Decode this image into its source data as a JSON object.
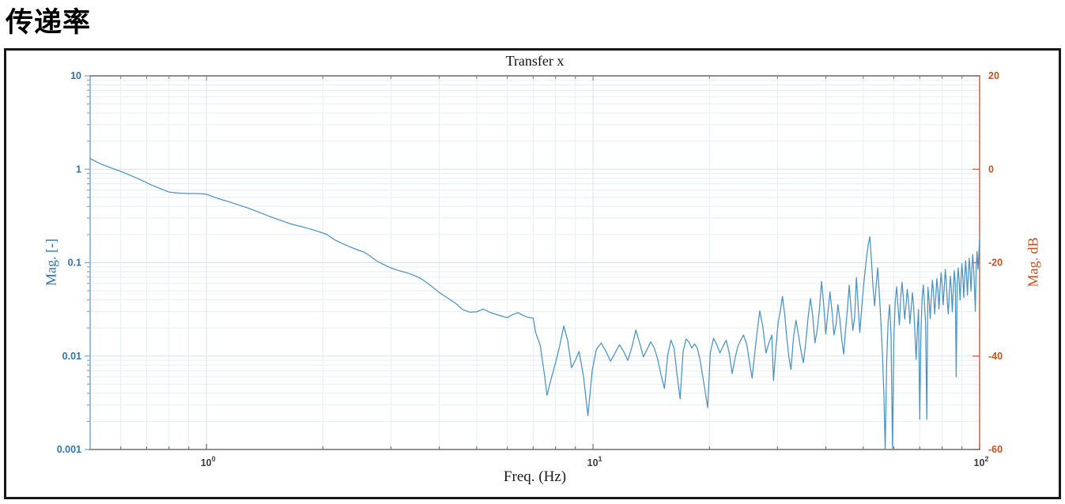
{
  "page": {
    "heading": "传递率"
  },
  "figure": {
    "title": "Transfer x",
    "xlabel": "Freq. (Hz)",
    "ylabel_left": "Mag. [-]",
    "ylabel_right": "Mag. dB"
  },
  "colors": {
    "left_axis_line": "#7fa9c9",
    "left_axis_text": "#2d76ab",
    "right_axis_line": "#d0592b",
    "right_axis_text": "#c5511f",
    "curve": "#4a92c3",
    "grid_major": "#d9e2ec",
    "grid_minor": "#e8eef4",
    "x_axis_line": "#6e6e6e",
    "top_axis_line": "#7c7c7c",
    "x_tick_text": "#3d3d3d"
  },
  "chart_data": {
    "type": "line",
    "title": "Transfer x",
    "xlabel": "Freq. (Hz)",
    "ylabel_left": "Mag. [-]",
    "ylabel_right": "Mag. dB",
    "x_scale": "log",
    "y_scale": "log",
    "xlim": [
      0.5,
      100
    ],
    "ylim_left": [
      0.001,
      10
    ],
    "ylim_right_db": [
      -60,
      20
    ],
    "grid": "on",
    "legend": "none",
    "xticks": [
      {
        "value": 1,
        "base": "10",
        "exp": "0"
      },
      {
        "value": 10,
        "base": "10",
        "exp": "1"
      },
      {
        "value": 100,
        "base": "10",
        "exp": "2"
      }
    ],
    "yticks_left": [
      {
        "value": 10,
        "label": "10"
      },
      {
        "value": 1,
        "label": "1"
      },
      {
        "value": 0.1,
        "label": "0.1"
      },
      {
        "value": 0.01,
        "label": "0.01"
      },
      {
        "value": 0.001,
        "label": "0.001"
      }
    ],
    "yticks_right": [
      {
        "db": 20,
        "label": "20"
      },
      {
        "db": 0,
        "label": "0"
      },
      {
        "db": -20,
        "label": "-20"
      },
      {
        "db": -40,
        "label": "-40"
      },
      {
        "db": -60,
        "label": "-60"
      }
    ],
    "series": [
      {
        "name": "Transfer x",
        "points": [
          [
            0.5,
            1.3
          ],
          [
            0.53,
            1.15
          ],
          [
            0.56,
            1.05
          ],
          [
            0.6,
            0.95
          ],
          [
            0.64,
            0.85
          ],
          [
            0.68,
            0.76
          ],
          [
            0.72,
            0.68
          ],
          [
            0.76,
            0.62
          ],
          [
            0.8,
            0.57
          ],
          [
            0.85,
            0.555
          ],
          [
            0.9,
            0.55
          ],
          [
            0.95,
            0.55
          ],
          [
            1.0,
            0.54
          ],
          [
            1.05,
            0.5
          ],
          [
            1.1,
            0.47
          ],
          [
            1.15,
            0.445
          ],
          [
            1.2,
            0.42
          ],
          [
            1.28,
            0.385
          ],
          [
            1.36,
            0.35
          ],
          [
            1.45,
            0.315
          ],
          [
            1.55,
            0.285
          ],
          [
            1.65,
            0.26
          ],
          [
            1.75,
            0.245
          ],
          [
            1.85,
            0.23
          ],
          [
            1.95,
            0.215
          ],
          [
            2.05,
            0.2
          ],
          [
            2.15,
            0.175
          ],
          [
            2.25,
            0.16
          ],
          [
            2.35,
            0.148
          ],
          [
            2.45,
            0.138
          ],
          [
            2.55,
            0.13
          ],
          [
            2.65,
            0.118
          ],
          [
            2.75,
            0.105
          ],
          [
            2.85,
            0.097
          ],
          [
            3.0,
            0.088
          ],
          [
            3.15,
            0.082
          ],
          [
            3.3,
            0.078
          ],
          [
            3.45,
            0.073
          ],
          [
            3.6,
            0.067
          ],
          [
            3.8,
            0.057
          ],
          [
            4.0,
            0.048
          ],
          [
            4.2,
            0.042
          ],
          [
            4.4,
            0.037
          ],
          [
            4.6,
            0.0315
          ],
          [
            4.8,
            0.0295
          ],
          [
            5.0,
            0.0298
          ],
          [
            5.2,
            0.0318
          ],
          [
            5.4,
            0.0295
          ],
          [
            5.6,
            0.028
          ],
          [
            5.8,
            0.0268
          ],
          [
            6.0,
            0.0258
          ],
          [
            6.2,
            0.0278
          ],
          [
            6.4,
            0.0292
          ],
          [
            6.6,
            0.0272
          ],
          [
            6.8,
            0.026
          ],
          [
            7.0,
            0.0255
          ],
          [
            7.1,
            0.018
          ],
          [
            7.3,
            0.013
          ],
          [
            7.5,
            0.006
          ],
          [
            7.6,
            0.0038
          ],
          [
            7.8,
            0.0058
          ],
          [
            8.0,
            0.0085
          ],
          [
            8.2,
            0.013
          ],
          [
            8.4,
            0.021
          ],
          [
            8.6,
            0.0145
          ],
          [
            8.8,
            0.0075
          ],
          [
            9.0,
            0.009
          ],
          [
            9.2,
            0.0112
          ],
          [
            9.45,
            0.006
          ],
          [
            9.7,
            0.0023
          ],
          [
            9.95,
            0.007
          ],
          [
            10.2,
            0.0118
          ],
          [
            10.5,
            0.0138
          ],
          [
            10.8,
            0.0112
          ],
          [
            11.1,
            0.0088
          ],
          [
            11.4,
            0.0108
          ],
          [
            11.7,
            0.0132
          ],
          [
            12.0,
            0.0112
          ],
          [
            12.3,
            0.009
          ],
          [
            12.6,
            0.0125
          ],
          [
            12.9,
            0.019
          ],
          [
            13.2,
            0.0138
          ],
          [
            13.5,
            0.0098
          ],
          [
            13.8,
            0.0118
          ],
          [
            14.1,
            0.0142
          ],
          [
            14.4,
            0.0122
          ],
          [
            14.7,
            0.0092
          ],
          [
            15.0,
            0.0062
          ],
          [
            15.3,
            0.0045
          ],
          [
            15.6,
            0.0102
          ],
          [
            15.9,
            0.0148
          ],
          [
            16.2,
            0.0122
          ],
          [
            16.5,
            0.0062
          ],
          [
            16.8,
            0.0035
          ],
          [
            17.1,
            0.0112
          ],
          [
            17.4,
            0.0152
          ],
          [
            17.7,
            0.0142
          ],
          [
            18.0,
            0.0122
          ],
          [
            18.3,
            0.0135
          ],
          [
            18.6,
            0.0122
          ],
          [
            18.9,
            0.0092
          ],
          [
            19.2,
            0.0062
          ],
          [
            19.5,
            0.0042
          ],
          [
            19.8,
            0.0028
          ],
          [
            20.1,
            0.0108
          ],
          [
            20.5,
            0.0155
          ],
          [
            20.9,
            0.0132
          ],
          [
            21.3,
            0.0108
          ],
          [
            21.7,
            0.0128
          ],
          [
            22.1,
            0.0148
          ],
          [
            22.5,
            0.0108
          ],
          [
            22.9,
            0.0065
          ],
          [
            23.3,
            0.0095
          ],
          [
            23.7,
            0.0128
          ],
          [
            24.1,
            0.0148
          ],
          [
            24.5,
            0.0168
          ],
          [
            25.0,
            0.0132
          ],
          [
            25.4,
            0.0085
          ],
          [
            25.8,
            0.0058
          ],
          [
            26.2,
            0.0108
          ],
          [
            26.6,
            0.0188
          ],
          [
            27.0,
            0.0305
          ],
          [
            27.5,
            0.0205
          ],
          [
            28.0,
            0.0108
          ],
          [
            28.5,
            0.0138
          ],
          [
            29.0,
            0.0168
          ],
          [
            29.3,
            0.0055
          ],
          [
            29.7,
            0.0118
          ],
          [
            30.1,
            0.0225
          ],
          [
            30.5,
            0.0305
          ],
          [
            30.9,
            0.0435
          ],
          [
            31.3,
            0.0285
          ],
          [
            31.7,
            0.0158
          ],
          [
            32.1,
            0.0098
          ],
          [
            32.5,
            0.0072
          ],
          [
            33.0,
            0.0158
          ],
          [
            33.5,
            0.0242
          ],
          [
            34.0,
            0.0168
          ],
          [
            34.5,
            0.0115
          ],
          [
            35.0,
            0.0085
          ],
          [
            35.5,
            0.0138
          ],
          [
            36.0,
            0.0262
          ],
          [
            36.5,
            0.0415
          ],
          [
            37.0,
            0.0268
          ],
          [
            37.5,
            0.0138
          ],
          [
            38.0,
            0.0192
          ],
          [
            38.5,
            0.0305
          ],
          [
            39.0,
            0.063
          ],
          [
            39.5,
            0.0355
          ],
          [
            40.0,
            0.0172
          ],
          [
            40.5,
            0.0292
          ],
          [
            41.0,
            0.0485
          ],
          [
            41.5,
            0.0305
          ],
          [
            42.0,
            0.0168
          ],
          [
            42.5,
            0.0215
          ],
          [
            43.0,
            0.0355
          ],
          [
            43.5,
            0.0245
          ],
          [
            44.0,
            0.0148
          ],
          [
            44.5,
            0.0105
          ],
          [
            45.0,
            0.0192
          ],
          [
            45.5,
            0.0318
          ],
          [
            46.0,
            0.0575
          ],
          [
            46.5,
            0.0318
          ],
          [
            47.0,
            0.0188
          ],
          [
            47.5,
            0.0262
          ],
          [
            48.0,
            0.0692
          ],
          [
            48.5,
            0.0338
          ],
          [
            49.0,
            0.0178
          ],
          [
            49.5,
            0.0312
          ],
          [
            50.0,
            0.052
          ],
          [
            50.5,
            0.078
          ],
          [
            51.0,
            0.115
          ],
          [
            51.5,
            0.155
          ],
          [
            52.0,
            0.19
          ],
          [
            52.5,
            0.105
          ],
          [
            53.0,
            0.055
          ],
          [
            53.5,
            0.0345
          ],
          [
            54.0,
            0.058
          ],
          [
            54.5,
            0.088
          ],
          [
            55.0,
            0.048
          ],
          [
            55.5,
            0.0245
          ],
          [
            56.0,
            0.0115
          ],
          [
            56.5,
            0.0042
          ],
          [
            57.0,
            0.0008
          ],
          [
            57.5,
            0.0088
          ],
          [
            58.0,
            0.0235
          ],
          [
            58.5,
            0.0355
          ],
          [
            59.0,
            0.0165
          ],
          [
            59.5,
            0.0008
          ],
          [
            60.0,
            0.0152
          ],
          [
            60.5,
            0.0385
          ],
          [
            61.0,
            0.0552
          ],
          [
            61.5,
            0.0342
          ],
          [
            62.0,
            0.0215
          ],
          [
            62.5,
            0.0422
          ],
          [
            63.0,
            0.0618
          ],
          [
            63.5,
            0.0415
          ],
          [
            64.0,
            0.0248
          ],
          [
            64.5,
            0.0352
          ],
          [
            65.0,
            0.0518
          ],
          [
            65.5,
            0.0378
          ],
          [
            66.0,
            0.0222
          ],
          [
            66.5,
            0.0318
          ],
          [
            67.0,
            0.0478
          ],
          [
            67.5,
            0.0345
          ],
          [
            68.0,
            0.0182
          ],
          [
            68.5,
            0.0092
          ],
          [
            69.0,
            0.0188
          ],
          [
            69.5,
            0.0315
          ],
          [
            70.0,
            0.0021
          ],
          [
            70.5,
            0.0178
          ],
          [
            71.0,
            0.0422
          ],
          [
            71.5,
            0.0578
          ],
          [
            72.0,
            0.0378
          ],
          [
            72.5,
            0.0222
          ],
          [
            73.0,
            0.0021
          ],
          [
            73.5,
            0.0548
          ],
          [
            74.0,
            0.0398
          ],
          [
            74.5,
            0.0252
          ],
          [
            75.0,
            0.0422
          ],
          [
            75.5,
            0.0648
          ],
          [
            76.0,
            0.0478
          ],
          [
            76.5,
            0.0282
          ],
          [
            77.0,
            0.0422
          ],
          [
            77.5,
            0.0678
          ],
          [
            78.0,
            0.0518
          ],
          [
            78.5,
            0.0318
          ],
          [
            79.0,
            0.0518
          ],
          [
            79.5,
            0.0778
          ],
          [
            80.0,
            0.0578
          ],
          [
            80.5,
            0.0352
          ],
          [
            81.0,
            0.0548
          ],
          [
            81.5,
            0.0848
          ],
          [
            82.0,
            0.0618
          ],
          [
            82.5,
            0.0378
          ],
          [
            83.0,
            0.0282
          ],
          [
            83.5,
            0.0478
          ],
          [
            84.0,
            0.0718
          ],
          [
            84.5,
            0.0518
          ],
          [
            85.0,
            0.0298
          ],
          [
            85.5,
            0.0518
          ],
          [
            86.0,
            0.0818
          ],
          [
            86.5,
            0.0598
          ],
          [
            87.0,
            0.006
          ],
          [
            87.5,
            0.0578
          ],
          [
            88.0,
            0.0878
          ],
          [
            88.5,
            0.0648
          ],
          [
            89.0,
            0.0398
          ],
          [
            89.5,
            0.0648
          ],
          [
            90.0,
            0.0978
          ],
          [
            90.5,
            0.0698
          ],
          [
            91.0,
            0.0422
          ],
          [
            91.5,
            0.0698
          ],
          [
            92.0,
            0.105
          ],
          [
            92.5,
            0.0748
          ],
          [
            93.0,
            0.0448
          ],
          [
            93.5,
            0.0748
          ],
          [
            94.0,
            0.112
          ],
          [
            94.5,
            0.0798
          ],
          [
            95.0,
            0.0498
          ],
          [
            95.5,
            0.0848
          ],
          [
            96.0,
            0.122
          ],
          [
            96.5,
            0.0878
          ],
          [
            97.0,
            0.0548
          ],
          [
            97.5,
            0.0302
          ],
          [
            98.0,
            0.092
          ],
          [
            98.5,
            0.132
          ],
          [
            99.0,
            0.0848
          ],
          [
            99.5,
            0.115
          ],
          [
            100.0,
            0.19
          ]
        ]
      }
    ]
  }
}
